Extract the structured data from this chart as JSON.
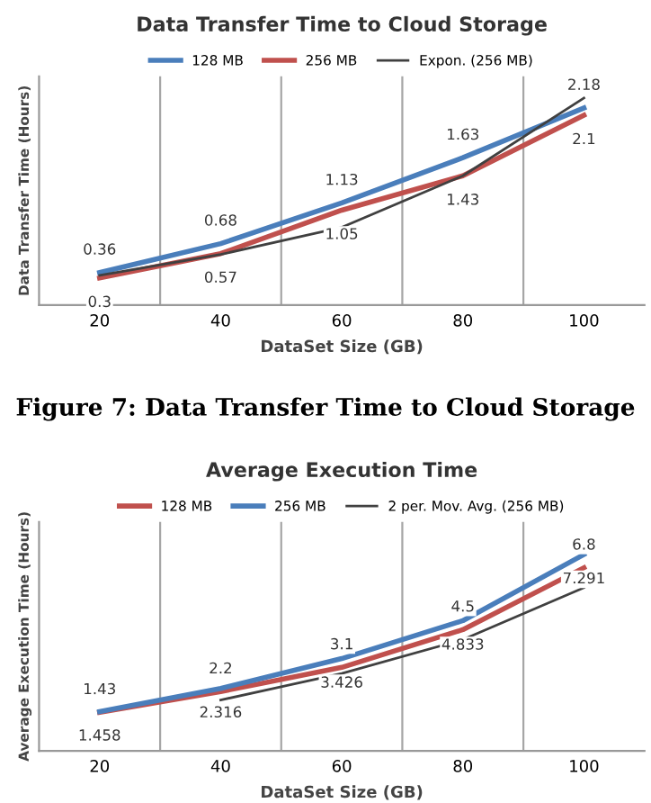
{
  "chart_data": [
    {
      "type": "line",
      "title": "Data Transfer Time to Cloud Storage",
      "xlabel": "DataSet Size (GB)",
      "ylabel": "Data Transfer Time (Hours)",
      "categories": [
        "20",
        "40",
        "60",
        "80",
        "100"
      ],
      "ylim": [
        0,
        2.53
      ],
      "tick_labels": "x",
      "grid": "x",
      "legend": "top",
      "annotations": [
        "Figure 7: Data Transfer Time to Cloud Storage"
      ],
      "series": [
        {
          "name": "128 MB",
          "color": "#4a7ebb",
          "values": [
            0.36,
            0.68,
            1.13,
            1.63,
            2.18
          ],
          "value_labels": [
            "0.36",
            "0.68",
            "1.13",
            "1.63",
            "2.18"
          ]
        },
        {
          "name": "256 MB",
          "color": "#c0504d",
          "values": [
            0.3,
            0.57,
            1.05,
            1.43,
            2.1
          ],
          "value_labels": [
            "0.3",
            "0.57",
            "1.05",
            "1.43",
            "2.1"
          ]
        },
        {
          "name": "Expon. (256 MB)",
          "color": "#404040",
          "values": [
            0.33,
            0.56,
            0.86,
            1.43,
            2.29
          ]
        }
      ]
    },
    {
      "type": "line",
      "title": "Average Execution Time",
      "xlabel": "DataSet Size (GB)",
      "ylabel": "Average Execution Time (Hours)",
      "categories": [
        "20",
        "40",
        "60",
        "80",
        "100"
      ],
      "ylim": [
        0,
        8.5
      ],
      "tick_labels": "x",
      "grid": "x",
      "legend": "top",
      "series": [
        {
          "name": "128 MB",
          "color": "#c0504d",
          "values": [
            1.43,
            2.2,
            3.1,
            4.5,
            6.8
          ],
          "value_labels": [
            "1.43",
            "2.2",
            "3.1",
            "4.5",
            "6.8"
          ]
        },
        {
          "name": "256 MB",
          "color": "#4a7ebb",
          "values": [
            1.458,
            2.316,
            3.426,
            4.833,
            7.291
          ],
          "value_labels": [
            "1.458",
            "2.316",
            "3.426",
            "4.833",
            "7.291"
          ]
        },
        {
          "name": "2 per. Mov. Avg. (256 MB)",
          "color": "#404040",
          "values": [
            null,
            1.887,
            2.871,
            4.13,
            6.06
          ]
        }
      ]
    }
  ]
}
